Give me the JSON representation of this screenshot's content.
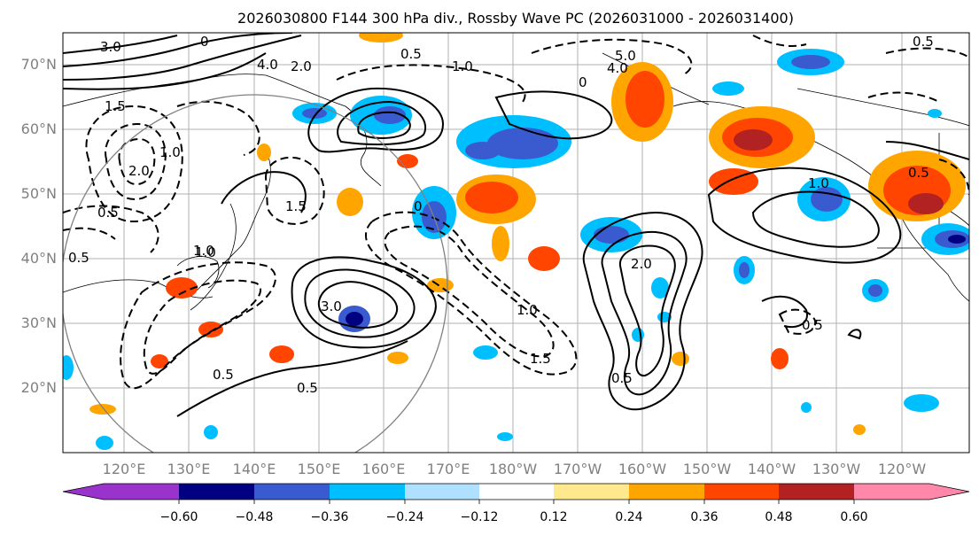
{
  "title": "2026030800 F144 300 hPa div., Rossby Wave PC (2026031000 - 2026031400)",
  "lat_labels": [
    "70°N",
    "60°N",
    "50°N",
    "40°N",
    "30°N",
    "20°N"
  ],
  "lon_labels": [
    "120°E",
    "130°E",
    "140°E",
    "150°E",
    "160°E",
    "170°E",
    "180°W",
    "170°W",
    "160°W",
    "150°W",
    "140°W",
    "130°W",
    "120°W"
  ],
  "colorbar": {
    "ticks": [
      "−0.60",
      "−0.48",
      "−0.36",
      "−0.24",
      "−0.12",
      "0.12",
      "0.24",
      "0.36",
      "0.48",
      "0.60"
    ],
    "colors": [
      "#9933cc",
      "#000080",
      "#3a5bd0",
      "#00bfff",
      "#b0e0ff",
      "#ffffff",
      "#ffe98c",
      "#ffa500",
      "#ff4500",
      "#b22222",
      "#ff88aa"
    ]
  },
  "contour_labels": [
    "3.0",
    "0",
    "4.0",
    "2.0",
    "0.5",
    "1.0",
    "5.0",
    "4.0",
    "0.5",
    "1.5",
    "2.0",
    "0.5",
    "1.0",
    "1.5",
    "1.0",
    "0.5",
    "3.0",
    "0",
    "0",
    "2.0",
    "1.5",
    "0.5",
    "0.5",
    "1.0",
    "0.5",
    "0.5",
    "1.0",
    "1.0",
    "0.5"
  ]
}
